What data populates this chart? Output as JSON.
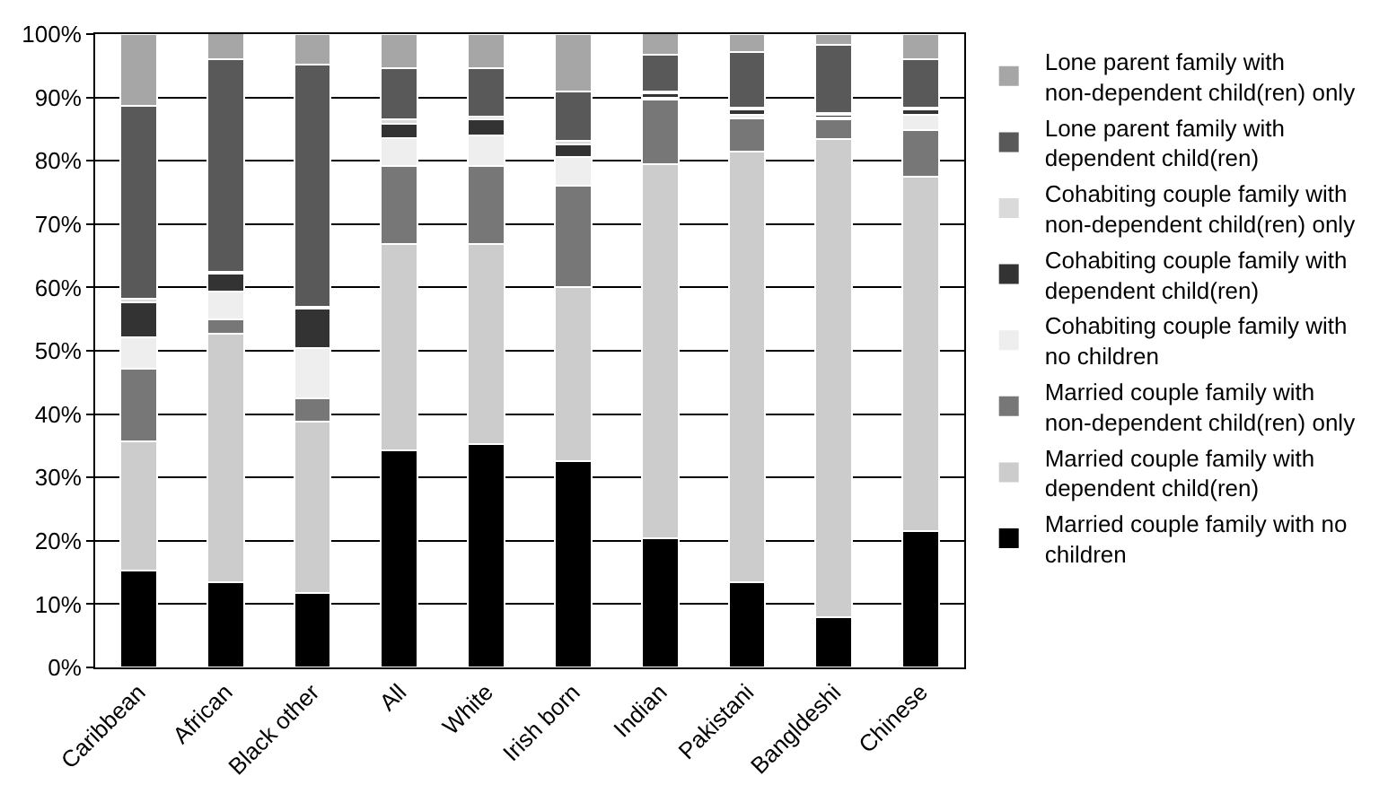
{
  "chart_data": {
    "type": "bar",
    "stacked": true,
    "categories": [
      "Caribbean",
      "African",
      "Black other",
      "All",
      "White",
      "Irish born",
      "Indian",
      "Pakistani",
      "Bangldeshi",
      "Chinese"
    ],
    "series": [
      {
        "name": "Married couple family with no children",
        "color": "#000000",
        "values": [
          15.3,
          13.4,
          11.7,
          34.3,
          35.2,
          32.6,
          20.4,
          13.4,
          8.0,
          21.5
        ]
      },
      {
        "name": "Married couple family with dependent child(ren)",
        "color": "#cccccc",
        "values": [
          20.4,
          39.3,
          27.1,
          32.6,
          31.7,
          27.4,
          59.1,
          68.0,
          75.4,
          56.0
        ]
      },
      {
        "name": "Married couple family with non-dependent child(ren) only",
        "color": "#777777",
        "values": [
          11.5,
          2.3,
          3.7,
          12.3,
          12.3,
          16.1,
          10.1,
          5.3,
          3.1,
          7.3
        ]
      },
      {
        "name": "Cohabiting couple family with no children",
        "color": "#eeeeee",
        "values": [
          4.9,
          4.4,
          7.9,
          4.4,
          4.8,
          4.5,
          0.3,
          0.5,
          0.3,
          2.5
        ]
      },
      {
        "name": "Cohabiting couple family with dependent child(ren)",
        "color": "#333333",
        "values": [
          5.6,
          2.8,
          6.2,
          2.3,
          2.5,
          2.0,
          0.8,
          0.9,
          0.5,
          0.8
        ]
      },
      {
        "name": "Cohabiting couple family with non-dependent child(ren) only",
        "color": "#dadada",
        "values": [
          0.5,
          0.2,
          0.4,
          0.6,
          0.5,
          0.5,
          0.3,
          0.3,
          0.2,
          0.3
        ]
      },
      {
        "name": "Lone parent family with dependent child(ren)",
        "color": "#595959",
        "values": [
          30.5,
          33.6,
          38.2,
          8.1,
          7.6,
          7.9,
          5.7,
          8.8,
          10.8,
          7.6
        ]
      },
      {
        "name": "Lone parent family with non-dependent child(ren) only",
        "color": "#a6a6a6",
        "values": [
          11.3,
          4.2,
          4.8,
          5.4,
          5.4,
          9.0,
          3.4,
          2.8,
          1.7,
          4.0
        ]
      }
    ],
    "ylim": [
      0,
      100
    ],
    "yticks": [
      {
        "value": 0,
        "label": "0%"
      },
      {
        "value": 10,
        "label": "10%"
      },
      {
        "value": 20,
        "label": "20%"
      },
      {
        "value": 30,
        "label": "30%"
      },
      {
        "value": 40,
        "label": "40%"
      },
      {
        "value": 50,
        "label": "50%"
      },
      {
        "value": 60,
        "label": "60%"
      },
      {
        "value": 70,
        "label": "70%"
      },
      {
        "value": 80,
        "label": "80%"
      },
      {
        "value": 90,
        "label": "90%"
      },
      {
        "value": 100,
        "label": "100%"
      }
    ],
    "grid": "y",
    "legend": "right"
  }
}
